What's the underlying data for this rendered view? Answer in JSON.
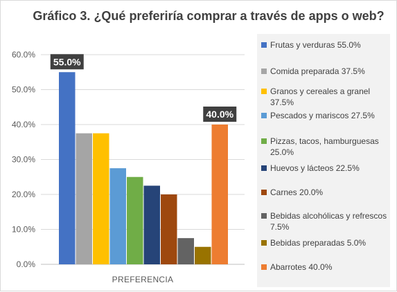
{
  "title": "Gráfico 3. ¿Qué preferiría comprar a través de apps o web?",
  "chart_data": {
    "type": "bar",
    "title": "Gráfico 3. ¿Qué preferiría comprar a través de apps o web?",
    "xlabel": "",
    "ylabel": "",
    "categories": [
      "PREFERENCIA"
    ],
    "ylim": [
      0,
      60
    ],
    "yticks": [
      "0.0%",
      "10.0%",
      "20.0%",
      "30.0%",
      "40.0%",
      "50.0%",
      "60.0%"
    ],
    "grid": true,
    "legend_position": "right",
    "series": [
      {
        "name": "Frutas y verduras",
        "value": 55.0,
        "legend": "Frutas y verduras 55.0%",
        "color": "#4472c4"
      },
      {
        "name": "Comida preparada",
        "value": 37.5,
        "legend": "Comida preparada 37.5%",
        "color": "#a5a5a5"
      },
      {
        "name": "Granos y cereales a granel",
        "value": 37.5,
        "legend": "Granos y cereales a granel 37.5%",
        "color": "#ffc000"
      },
      {
        "name": "Pescados y mariscos",
        "value": 27.5,
        "legend": "Pescados y mariscos 27.5%",
        "color": "#5b9bd5"
      },
      {
        "name": "Pizzas, tacos, hamburguesas",
        "value": 25.0,
        "legend": "Pizzas, tacos, hamburguesas 25.0%",
        "color": "#70ad47"
      },
      {
        "name": "Huevos y lácteos",
        "value": 22.5,
        "legend": "Huevos y lácteos 22.5%",
        "color": "#264478"
      },
      {
        "name": "Carnes",
        "value": 20.0,
        "legend": "Carnes 20.0%",
        "color": "#9e480e"
      },
      {
        "name": "Bebidas alcohólicas y refrescos",
        "value": 7.5,
        "legend": "Bebidas alcohólicas y refrescos 7.5%",
        "color": "#636363"
      },
      {
        "name": "Bebidas preparadas",
        "value": 5.0,
        "legend": "Bebidas preparadas 5.0%",
        "color": "#997300"
      },
      {
        "name": "Abarrotes",
        "value": 40.0,
        "legend": "Abarrotes 40.0%",
        "color": "#ed7d31"
      }
    ],
    "data_labels": [
      {
        "series": "Frutas y verduras",
        "text": "55.0%"
      },
      {
        "series": "Abarrotes",
        "text": "40.0%"
      }
    ]
  }
}
